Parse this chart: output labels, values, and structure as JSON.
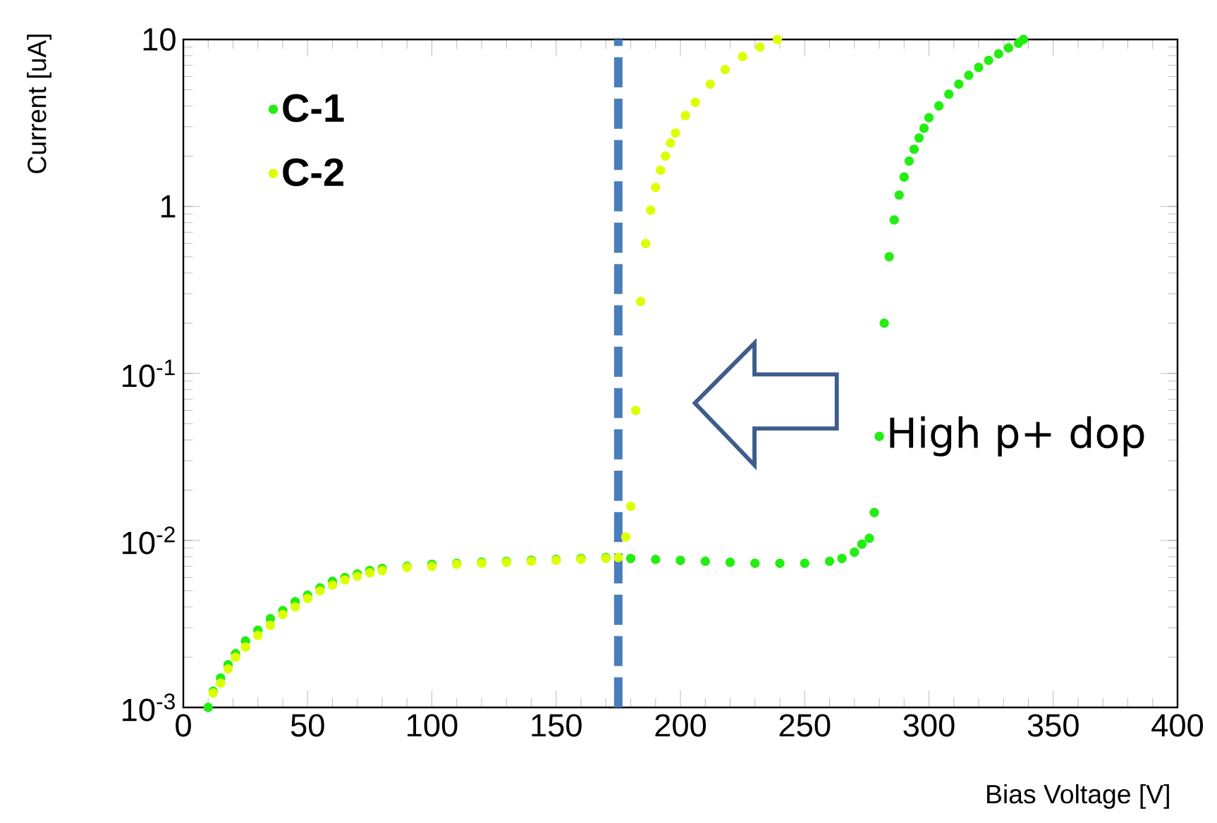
{
  "chart_data": {
    "type": "scatter",
    "xlabel": "Bias Voltage [V]",
    "ylabel": "Current [uA]",
    "log": "y",
    "marker": "circle",
    "legend": "top left",
    "xlim": [
      0,
      400
    ],
    "xticks": [
      0,
      50,
      100,
      150,
      200,
      250,
      300,
      350,
      400
    ],
    "ylim": [
      0.001,
      10
    ],
    "yticks": [
      {
        "value": 0.001,
        "label": "10$^{-3}$"
      },
      {
        "value": 0.01,
        "label": "10$^{-2}$"
      },
      {
        "value": 0.1,
        "label": "10$^{-1}$"
      },
      1,
      10
    ],
    "ref_lines": [
      {
        "axis": "x",
        "value": 175,
        "color": "#4a7ebb",
        "line_style": "dashed"
      }
    ],
    "annotations": [
      "High p+ dop"
    ],
    "series": [
      {
        "name": "C-1",
        "color": "#22ee11",
        "x": [
          10,
          12,
          15,
          18,
          21,
          25,
          30,
          35,
          40,
          45,
          50,
          55,
          60,
          65,
          70,
          75,
          80,
          90,
          100,
          110,
          120,
          130,
          140,
          150,
          160,
          170,
          180,
          190,
          200,
          210,
          220,
          230,
          240,
          250,
          260,
          265,
          270,
          273,
          276,
          278,
          280,
          282,
          284,
          286,
          288,
          290,
          292,
          294,
          296,
          298,
          300,
          304,
          308,
          312,
          316,
          320,
          324,
          328,
          332,
          336,
          338
        ],
        "values": [
          0.001,
          0.00125,
          0.0015,
          0.0018,
          0.0021,
          0.0025,
          0.0029,
          0.0034,
          0.0038,
          0.0043,
          0.0047,
          0.0052,
          0.0057,
          0.006,
          0.0063,
          0.0066,
          0.0068,
          0.007,
          0.0072,
          0.0073,
          0.0074,
          0.0075,
          0.0076,
          0.0077,
          0.0078,
          0.0079,
          0.0078,
          0.0077,
          0.0076,
          0.0075,
          0.0074,
          0.0073,
          0.0073,
          0.0073,
          0.0075,
          0.0078,
          0.0085,
          0.0095,
          0.0103,
          0.0147,
          0.042,
          0.2,
          0.5,
          0.83,
          1.17,
          1.5,
          1.87,
          2.2,
          2.57,
          2.94,
          3.4,
          4.0,
          4.7,
          5.4,
          6.1,
          6.8,
          7.5,
          8.2,
          8.9,
          9.5,
          10
        ]
      },
      {
        "name": "C-2",
        "color": "#ddff00",
        "x": [
          12,
          15,
          18,
          21,
          25,
          30,
          35,
          40,
          45,
          50,
          55,
          60,
          65,
          70,
          75,
          80,
          90,
          100,
          110,
          120,
          130,
          140,
          150,
          160,
          170,
          175,
          178,
          180,
          182,
          184,
          186,
          188,
          190,
          192,
          194,
          196,
          198,
          202,
          206,
          212,
          218,
          225,
          232,
          239
        ],
        "values": [
          0.00122,
          0.0014,
          0.0017,
          0.002,
          0.0023,
          0.0027,
          0.0031,
          0.0036,
          0.004,
          0.0045,
          0.005,
          0.0054,
          0.0058,
          0.0061,
          0.0064,
          0.0066,
          0.0069,
          0.007,
          0.0072,
          0.0073,
          0.0074,
          0.0075,
          0.0076,
          0.0077,
          0.0078,
          0.0079,
          0.0105,
          0.016,
          0.06,
          0.27,
          0.6,
          0.95,
          1.3,
          1.65,
          2.0,
          2.4,
          2.75,
          3.5,
          4.2,
          5.4,
          6.6,
          7.9,
          9.0,
          10
        ]
      }
    ]
  }
}
